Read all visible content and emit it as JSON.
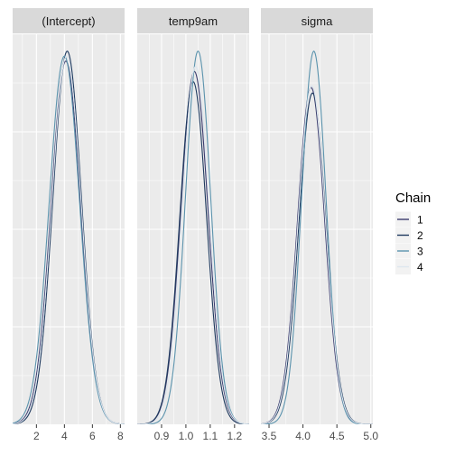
{
  "chart_data": {
    "type": "line",
    "panels": [
      {
        "title": "(Intercept)",
        "xlim": [
          0.3,
          8.3
        ],
        "xticks": [
          2,
          4,
          6,
          8
        ],
        "xtick_labels": [
          "2",
          "4",
          "6",
          "8"
        ],
        "series": [
          {
            "chain": "1",
            "mean": 4.1,
            "sd": 1.05,
            "peak": 0.365
          },
          {
            "chain": "2",
            "mean": 4.2,
            "sd": 1.02,
            "peak": 0.375
          },
          {
            "chain": "3",
            "mean": 4.0,
            "sd": 1.08,
            "peak": 0.37
          },
          {
            "chain": "4",
            "mean": 4.15,
            "sd": 1.04,
            "peak": 0.37
          }
        ]
      },
      {
        "title": "temp9am",
        "xlim": [
          0.8,
          1.26
        ],
        "xticks": [
          0.9,
          1.0,
          1.1,
          1.2
        ],
        "xtick_labels": [
          "0.9",
          "1.0",
          "1.1",
          "1.2"
        ],
        "series": [
          {
            "chain": "1",
            "mean": 1.035,
            "sd": 0.056,
            "peak": 6.9
          },
          {
            "chain": "2",
            "mean": 1.03,
            "sd": 0.055,
            "peak": 6.7
          },
          {
            "chain": "3",
            "mean": 1.05,
            "sd": 0.052,
            "peak": 7.3
          },
          {
            "chain": "4",
            "mean": 1.04,
            "sd": 0.055,
            "peak": 7.0
          }
        ]
      },
      {
        "title": "sigma",
        "xlim": [
          3.38,
          5.03
        ],
        "xticks": [
          3.5,
          4.0,
          4.5,
          5.0
        ],
        "xtick_labels": [
          "3.5",
          "4.0",
          "4.5",
          "5.0"
        ],
        "series": [
          {
            "chain": "1",
            "mean": 4.12,
            "sd": 0.2,
            "peak": 1.85
          },
          {
            "chain": "2",
            "mean": 4.14,
            "sd": 0.2,
            "peak": 1.82
          },
          {
            "chain": "3",
            "mean": 4.16,
            "sd": 0.18,
            "peak": 2.05
          },
          {
            "chain": "4",
            "mean": 4.13,
            "sd": 0.2,
            "peak": 1.86
          }
        ]
      }
    ],
    "legend": {
      "title": "Chain",
      "position": "right",
      "items": [
        {
          "label": "1",
          "color": "#3b3b6d"
        },
        {
          "label": "2",
          "color": "#1f3a5f"
        },
        {
          "label": "3",
          "color": "#5b93ad"
        },
        {
          "label": "4",
          "color": "#dde6ee"
        }
      ]
    },
    "grid": true,
    "panel_background": "#ebebeb",
    "strip_background": "#d9d9d9"
  }
}
